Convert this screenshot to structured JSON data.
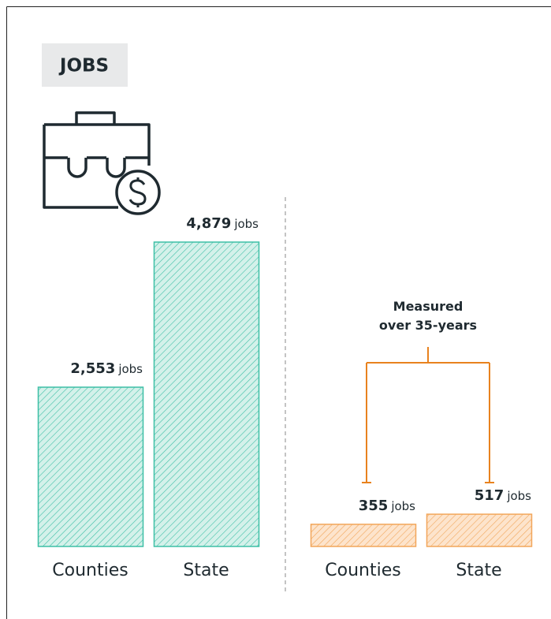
{
  "title": "JOBS",
  "chart_data": [
    {
      "type": "bar",
      "categories": [
        "Counties",
        "State"
      ],
      "values": [
        2553,
        4879
      ],
      "value_labels": [
        "2,553",
        "4,879"
      ],
      "unit": "jobs",
      "color": "#3dbfa6",
      "fill": "#d4f1ea"
    },
    {
      "type": "bar",
      "categories": [
        "Counties",
        "State"
      ],
      "values": [
        355,
        517
      ],
      "value_labels": [
        "355",
        "517"
      ],
      "unit": "jobs",
      "color": "#f2a65a",
      "fill": "#fde4cc",
      "annotation": [
        "Measured",
        "over 35-years"
      ]
    }
  ]
}
